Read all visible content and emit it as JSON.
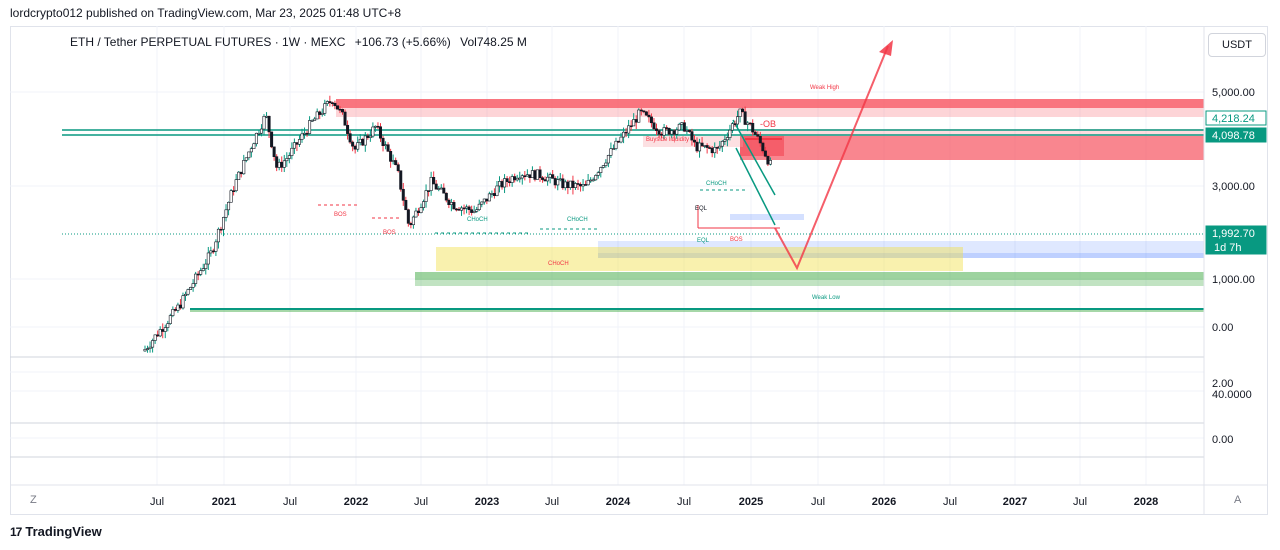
{
  "header": {
    "publisher_line": "lordcrypto012 published on TradingView.com, Mar 23, 2025 01:48 UTC+8"
  },
  "symbol_bar": {
    "title": "ETH / Tether PERPETUAL FUTURES · 1W · MEXC",
    "change": "+106.73 (+5.66%)",
    "volume": "Vol748.25 M"
  },
  "currency_button": {
    "label": "USDT"
  },
  "footer": {
    "brand": "TradingView"
  },
  "bottom_buttons": {
    "zoom": "Z",
    "auto": "A"
  },
  "colors": {
    "green": "#089981",
    "red": "#f23645",
    "demand_zone": "#4caf50",
    "supply_zone": "#f7525f",
    "yellow_zone": "#f2e14c",
    "blue_zone": "#2962ff"
  },
  "chart_data": {
    "type": "candlestick",
    "y_scale": "log",
    "price_ticks": [
      "5,000.00",
      "3,000.00",
      "1,000.00",
      "0.00"
    ],
    "lower_pane_ticks": [
      "2.00",
      "40.0000",
      "0.00"
    ],
    "price_labels": [
      {
        "value": "4,218.24",
        "color": "#089981"
      },
      {
        "value": "4,098.78",
        "color": "#089981"
      },
      {
        "value": "1,992.70",
        "sub": "1d 7h",
        "color": "#089981"
      }
    ],
    "x_ticks": [
      "Jul",
      "2021",
      "Jul",
      "2022",
      "Jul",
      "2023",
      "Jul",
      "2024",
      "Jul",
      "2025",
      "Jul",
      "2026",
      "Jul",
      "2027",
      "Jul",
      "2028"
    ],
    "series": [
      {
        "name": "ETH/USDT weekly close",
        "points": [
          [
            "2020-06",
            230
          ],
          [
            "2020-09",
            380
          ],
          [
            "2020-12",
            730
          ],
          [
            "2021-02",
            1600
          ],
          [
            "2021-04",
            2900
          ],
          [
            "2021-05",
            3800
          ],
          [
            "2021-06",
            2000
          ],
          [
            "2021-07",
            2300
          ],
          [
            "2021-09",
            3400
          ],
          [
            "2021-11",
            4600
          ],
          [
            "2021-12",
            3700
          ],
          [
            "2022-01",
            2500
          ],
          [
            "2022-03",
            3300
          ],
          [
            "2022-05",
            1900
          ],
          [
            "2022-06",
            1000
          ],
          [
            "2022-08",
            1700
          ],
          [
            "2022-10",
            1300
          ],
          [
            "2022-12",
            1200
          ],
          [
            "2023-02",
            1600
          ],
          [
            "2023-04",
            1900
          ],
          [
            "2023-06",
            1850
          ],
          [
            "2023-08",
            1650
          ],
          [
            "2023-10",
            1600
          ],
          [
            "2023-12",
            2300
          ],
          [
            "2024-03",
            3900
          ],
          [
            "2024-05",
            3100
          ],
          [
            "2024-07",
            3300
          ],
          [
            "2024-08",
            2600
          ],
          [
            "2024-10",
            2500
          ],
          [
            "2024-12",
            3900
          ],
          [
            "2025-01",
            3300
          ],
          [
            "2025-02",
            2600
          ],
          [
            "2025-03",
            1992.7
          ]
        ]
      }
    ],
    "annotations": [
      "Weak High",
      "Buyside liquidity",
      "-OB",
      "CHoCH",
      "CHoCH",
      "CHoCH",
      "CHoCH",
      "BOS",
      "BOS",
      "EQL",
      "EQL",
      "BOS",
      "Weak Low"
    ]
  }
}
